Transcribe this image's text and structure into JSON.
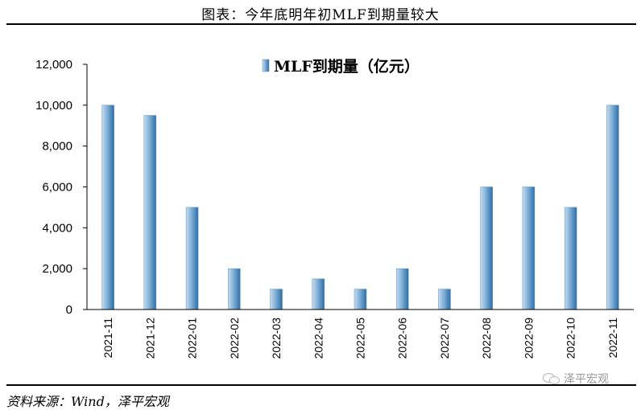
{
  "figure_title": "图表：今年底明年初MLF到期量较大",
  "source_note": "资料来源：Wind，泽平宏观",
  "watermark_text": "泽平宏观",
  "colors": {
    "bar_light": "#c6dcef",
    "bar_mid": "#7fafd6",
    "bar_dark": "#2d6ea8"
  },
  "chart_data": {
    "type": "bar",
    "categories": [
      "2021-11",
      "2021-12",
      "2022-01",
      "2022-02",
      "2022-03",
      "2022-04",
      "2022-05",
      "2022-06",
      "2022-07",
      "2022-08",
      "2022-09",
      "2022-10",
      "2022-11"
    ],
    "series": [
      {
        "name": "MLF到期量（亿元）",
        "values": [
          10000,
          9500,
          5000,
          2000,
          1000,
          1500,
          1000,
          2000,
          1000,
          6000,
          6000,
          5000,
          10000
        ]
      }
    ],
    "ylim": [
      0,
      12000
    ],
    "yticks": [
      0,
      2000,
      4000,
      6000,
      8000,
      10000,
      12000
    ],
    "ytick_labels": [
      "0",
      "2,000",
      "4,000",
      "6,000",
      "8,000",
      "10,000",
      "12,000"
    ],
    "legend_position": "top-center",
    "grid": false
  }
}
